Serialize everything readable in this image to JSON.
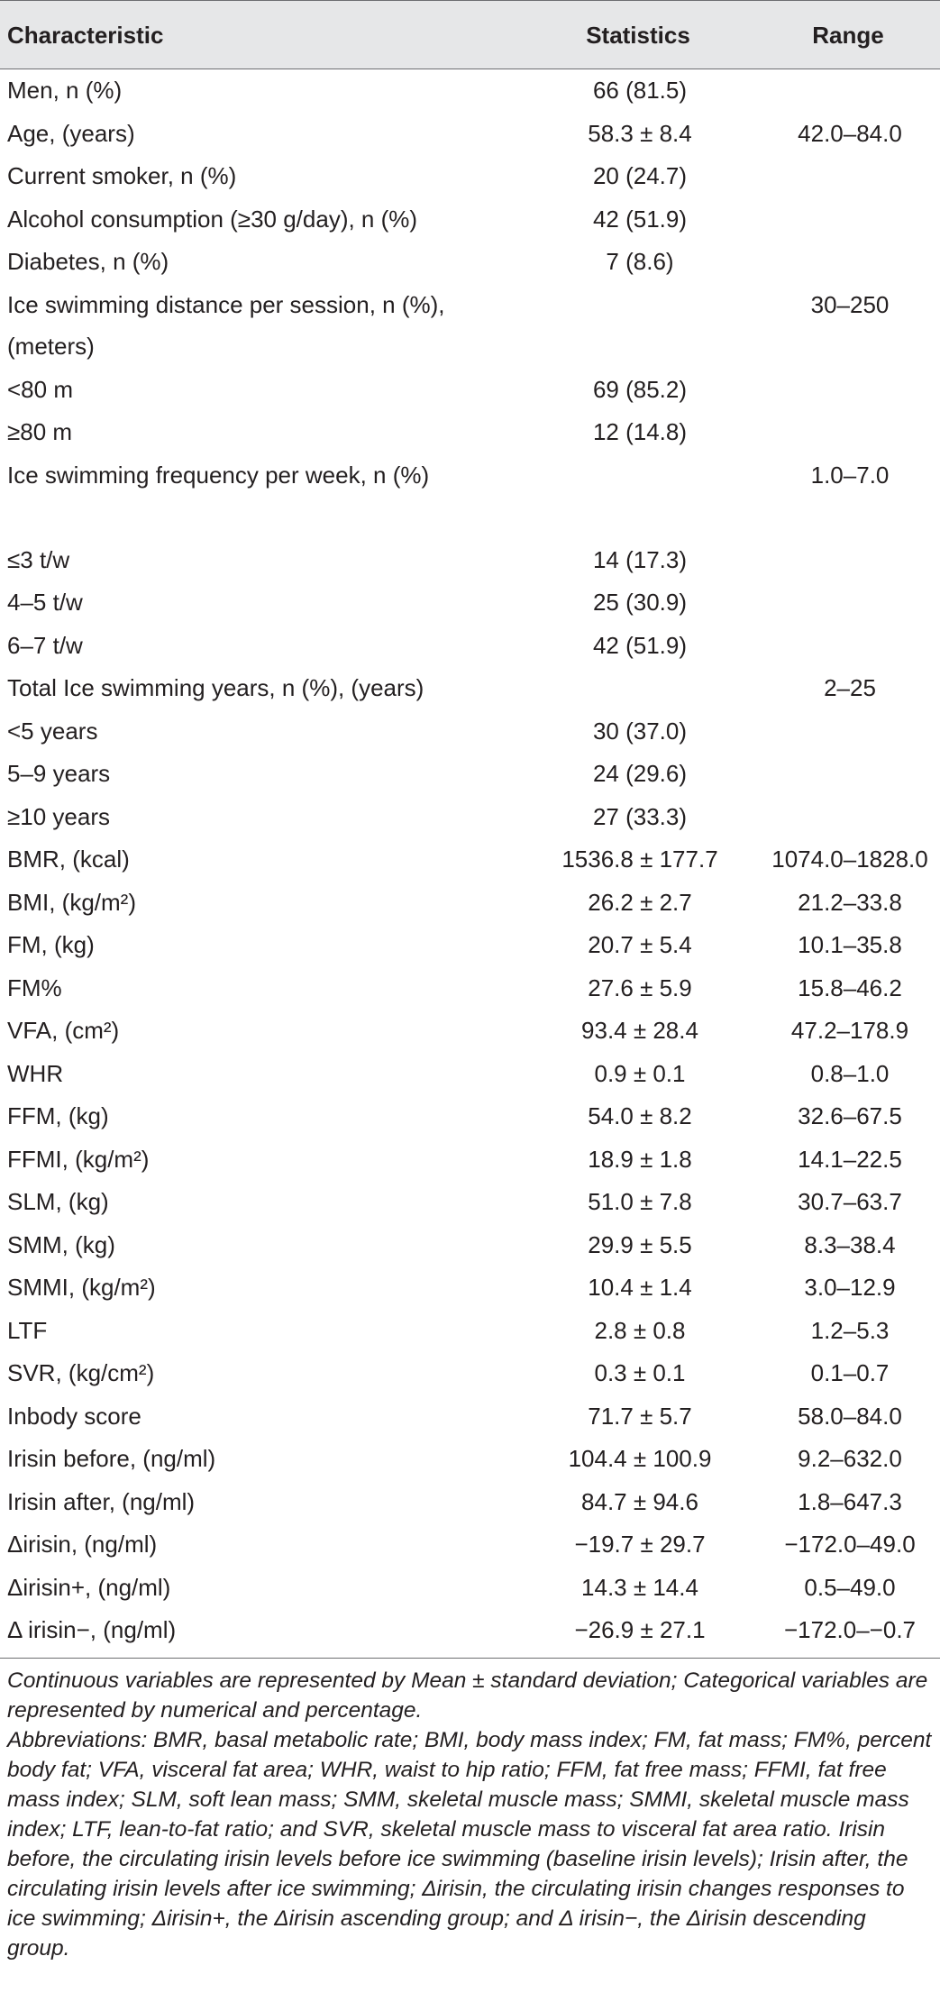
{
  "header": {
    "characteristic": "Characteristic",
    "statistics": "Statistics",
    "range": "Range"
  },
  "rows": [
    {
      "label": "Men, n (%)",
      "stat": "66 (81.5)",
      "range": ""
    },
    {
      "label": "Age, (years)",
      "stat": "58.3 ± 8.4",
      "range": "42.0–84.0"
    },
    {
      "label": "Current smoker, n (%)",
      "stat": "20 (24.7)",
      "range": ""
    },
    {
      "label": "Alcohol consumption (≥30 g/day), n (%)",
      "stat": "42 (51.9)",
      "range": ""
    },
    {
      "label": "Diabetes, n (%)",
      "stat": "7 (8.6)",
      "range": ""
    },
    {
      "label": "Ice swimming distance per session, n (%), (meters)",
      "stat": "",
      "range": "30–250",
      "tall": true
    },
    {
      "label": "<80 m",
      "stat": "69 (85.2)",
      "range": ""
    },
    {
      "label": "≥80 m",
      "stat": "12 (14.8)",
      "range": ""
    },
    {
      "label": "Ice swimming frequency per week, n (%)",
      "stat": "",
      "range": "1.0–7.0",
      "tall": true
    },
    {
      "label": "≤3 t/w",
      "stat": "14 (17.3)",
      "range": ""
    },
    {
      "label": "4–5 t/w",
      "stat": "25 (30.9)",
      "range": ""
    },
    {
      "label": "6–7 t/w",
      "stat": "42 (51.9)",
      "range": ""
    },
    {
      "label": "Total Ice swimming years, n (%), (years)",
      "stat": "",
      "range": "2–25"
    },
    {
      "label": "<5 years",
      "stat": "30 (37.0)",
      "range": ""
    },
    {
      "label": "5–9 years",
      "stat": "24 (29.6)",
      "range": ""
    },
    {
      "label": "≥10 years",
      "stat": "27 (33.3)",
      "range": ""
    },
    {
      "label": "BMR, (kcal)",
      "stat": "1536.8 ± 177.7",
      "range": "1074.0–1828.0"
    },
    {
      "label": "BMI, (kg/m²)",
      "stat": "26.2 ± 2.7",
      "range": "21.2–33.8"
    },
    {
      "label": "FM, (kg)",
      "stat": "20.7 ± 5.4",
      "range": "10.1–35.8"
    },
    {
      "label": "FM%",
      "stat": "27.6 ± 5.9",
      "range": "15.8–46.2"
    },
    {
      "label": "VFA, (cm²)",
      "stat": "93.4 ± 28.4",
      "range": "47.2–178.9"
    },
    {
      "label": "WHR",
      "stat": "0.9 ± 0.1",
      "range": "0.8–1.0"
    },
    {
      "label": "FFM, (kg)",
      "stat": "54.0 ± 8.2",
      "range": "32.6–67.5"
    },
    {
      "label": "FFMI, (kg/m²)",
      "stat": "18.9 ± 1.8",
      "range": "14.1–22.5"
    },
    {
      "label": "SLM, (kg)",
      "stat": "51.0 ± 7.8",
      "range": "30.7–63.7"
    },
    {
      "label": "SMM, (kg)",
      "stat": "29.9 ± 5.5",
      "range": "8.3–38.4"
    },
    {
      "label": "SMMI, (kg/m²)",
      "stat": "10.4 ± 1.4",
      "range": "3.0–12.9"
    },
    {
      "label": "LTF",
      "stat": "2.8 ± 0.8",
      "range": "1.2–5.3"
    },
    {
      "label": "SVR, (kg/cm²)",
      "stat": "0.3 ± 0.1",
      "range": "0.1–0.7"
    },
    {
      "label": "Inbody score",
      "stat": "71.7 ± 5.7",
      "range": "58.0–84.0"
    },
    {
      "label": "Irisin before, (ng/ml)",
      "stat": "104.4 ± 100.9",
      "range": "9.2–632.0"
    },
    {
      "label": "Irisin after, (ng/ml)",
      "stat": "84.7 ± 94.6",
      "range": "1.8–647.3"
    },
    {
      "label": "Δirisin, (ng/ml)",
      "stat": "−19.7 ± 29.7",
      "range": "−172.0–49.0"
    },
    {
      "label": "Δirisin+, (ng/ml)",
      "stat": "14.3 ± 14.4",
      "range": "0.5–49.0"
    },
    {
      "label": "Δ irisin−, (ng/ml)",
      "stat": "−26.9 ± 27.1",
      "range": "−172.0–−0.7"
    }
  ],
  "footnotes": {
    "note1": "Continuous variables are represented by Mean ± standard deviation; Categorical variables are represented by numerical and percentage.",
    "note2": "Abbreviations: BMR, basal metabolic rate; BMI, body mass index; FM, fat mass; FM%, percent body fat; VFA, visceral fat area; WHR, waist to hip ratio; FFM, fat free mass; FFMI, fat free mass index; SLM, soft lean mass; SMM, skeletal muscle mass; SMMI, skeletal muscle mass index; LTF, lean-to-fat ratio; and SVR, skeletal muscle mass to visceral fat area ratio. Irisin before, the circulating irisin levels before ice swimming (baseline irisin levels); Irisin after, the circulating irisin levels after ice swimming; Δirisin, the circulating irisin changes responses to ice swimming; Δirisin+, the Δirisin ascending group; and Δ irisin−, the Δirisin descending group."
  }
}
